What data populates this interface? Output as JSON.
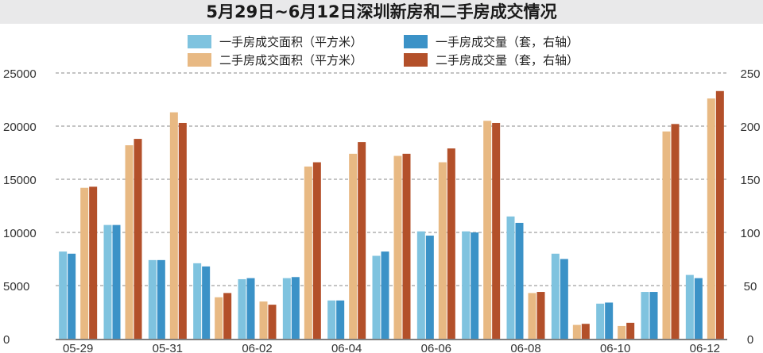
{
  "chart_data": {
    "type": "bar",
    "title": "5月29日~6月12日深圳新房和二手房成交情况",
    "categories": [
      "05-29",
      "05-30",
      "05-31",
      "06-01",
      "06-02",
      "06-03",
      "06-04",
      "06-05",
      "06-06",
      "06-07",
      "06-08",
      "06-09",
      "06-10",
      "06-11",
      "06-12"
    ],
    "x_tick_labels": [
      "05-29",
      "05-31",
      "06-02",
      "06-04",
      "06-06",
      "06-08",
      "06-10",
      "06-12"
    ],
    "left_axis": {
      "ylim": [
        0,
        25000
      ],
      "ticks": [
        "0",
        "5000",
        "10000",
        "15000",
        "20000",
        "25000"
      ]
    },
    "right_axis": {
      "ylim": [
        0,
        250
      ],
      "ticks": [
        "0",
        "50",
        "100",
        "150",
        "200",
        "250"
      ]
    },
    "grid": true,
    "series": [
      {
        "name": "一手房成交面积（平方米）",
        "axis": "left",
        "color": "#7fc3df",
        "values": [
          8200,
          10700,
          7400,
          7100,
          5600,
          5700,
          3600,
          7800,
          10100,
          10100,
          11500,
          8000,
          3300,
          4400,
          6000
        ]
      },
      {
        "name": "一手房成交量（套，右轴）",
        "axis": "right",
        "color": "#3b92c7",
        "values": [
          80,
          107,
          74,
          68,
          57,
          58,
          36,
          82,
          97,
          100,
          109,
          75,
          34,
          44,
          57
        ]
      },
      {
        "name": "二手房成交面积（平方米）",
        "axis": "left",
        "color": "#e8b983",
        "values": [
          14200,
          18200,
          21300,
          3900,
          3500,
          16200,
          17400,
          17200,
          16600,
          20500,
          4300,
          1300,
          1200,
          19500,
          22600
        ]
      },
      {
        "name": "二手房成交量（套，右轴）",
        "axis": "right",
        "color": "#b3502a",
        "values": [
          143,
          188,
          203,
          43,
          32,
          166,
          185,
          174,
          179,
          203,
          44,
          14,
          15,
          202,
          233
        ]
      }
    ],
    "legend": {
      "placement": "top-center",
      "items": [
        {
          "label": "一手房成交面积（平方米）",
          "color": "#7fc3df"
        },
        {
          "label": "一手房成交量（套，右轴）",
          "color": "#3b92c7"
        },
        {
          "label": "二手房成交面积（平方米）",
          "color": "#e8b983"
        },
        {
          "label": "二手房成交量（套，右轴）",
          "color": "#b3502a"
        }
      ]
    }
  }
}
